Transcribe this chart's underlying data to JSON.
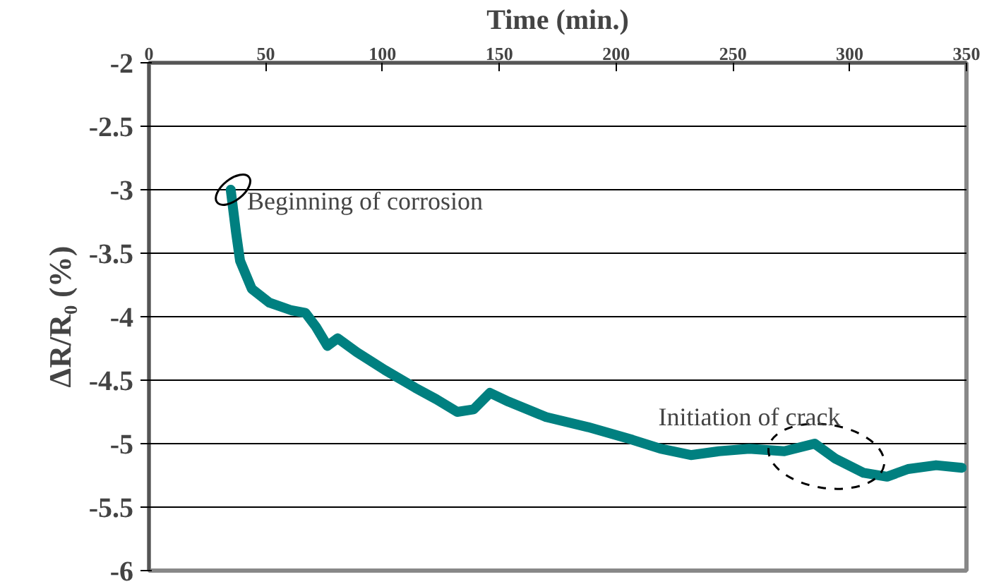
{
  "chart_data": {
    "type": "line",
    "xlabel": "Time (min.)",
    "ylabel": "ΔR/R₀ (%)",
    "xlim": [
      0,
      350
    ],
    "xticks": [
      0,
      50,
      100,
      150,
      200,
      250,
      300,
      350
    ],
    "ylim": [
      -6,
      -2
    ],
    "yticks": [
      -6,
      -5.5,
      -5,
      -4.5,
      -4,
      -3.5,
      -3,
      -2.5,
      -2
    ],
    "grid": "y",
    "marker": "none",
    "line_style": "solid",
    "x": [
      35,
      37.3,
      39,
      44,
      51.6,
      61,
      67,
      71.5,
      76.4,
      80.8,
      89,
      101,
      114,
      123,
      132,
      139,
      146,
      154,
      170,
      188,
      207,
      219,
      232,
      244,
      257,
      272,
      285,
      294,
      306,
      316,
      325,
      337,
      348
    ],
    "series": [
      {
        "color": "#008080",
        "values": [
          -3.0,
          -3.34,
          -3.56,
          -3.78,
          -3.89,
          -3.95,
          -3.97,
          -4.08,
          -4.23,
          -4.17,
          -4.28,
          -4.42,
          -4.56,
          -4.65,
          -4.75,
          -4.73,
          -4.6,
          -4.67,
          -4.79,
          -4.87,
          -4.97,
          -5.04,
          -5.09,
          -5.06,
          -5.04,
          -5.06,
          -5.0,
          -5.12,
          -5.23,
          -5.26,
          -5.2,
          -5.17,
          -5.19
        ]
      }
    ],
    "annotations": [
      {
        "text": "Beginning of corrosion",
        "x": 36,
        "y": -3.0
      },
      {
        "text": "Initiation of crack",
        "x": 290,
        "y": -5.1
      }
    ]
  }
}
